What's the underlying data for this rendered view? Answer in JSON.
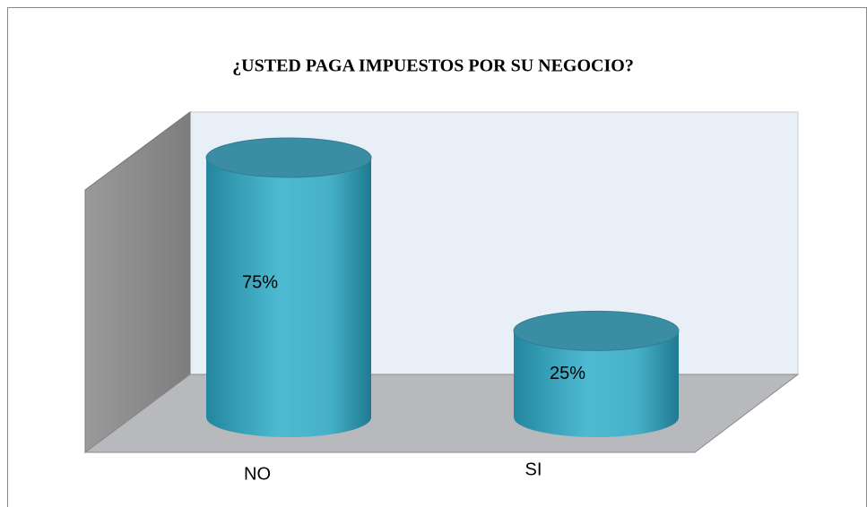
{
  "chart_data": {
    "type": "cylinder",
    "title": "¿USTED PAGA IMPUESTOS POR SU NEGOCIO?",
    "categories": [
      "NO",
      "SI"
    ],
    "values": [
      75,
      25
    ],
    "value_labels": [
      "75%",
      "25%"
    ],
    "color": "#3aa6c0"
  }
}
